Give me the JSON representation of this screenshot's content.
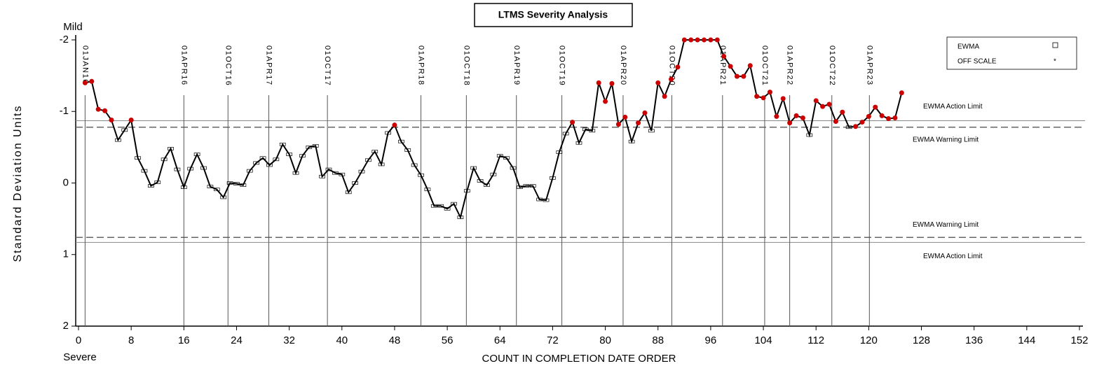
{
  "chart_data": {
    "type": "line",
    "title": "LTMS Severity Analysis",
    "xlabel": "COUNT IN COMPLETION DATE ORDER",
    "ylabel": "Standard Deviation Units",
    "y_top_label": "Mild",
    "y_bottom_label": "Severe",
    "xlim": [
      0,
      152
    ],
    "xticks": [
      0,
      8,
      16,
      24,
      32,
      40,
      48,
      56,
      64,
      72,
      80,
      88,
      96,
      104,
      112,
      120,
      128,
      136,
      144,
      152
    ],
    "ylim": [
      2,
      -2
    ],
    "yticks": [
      -2,
      -1,
      0,
      1,
      2
    ],
    "x": [
      1,
      2,
      3,
      4,
      5,
      6,
      7,
      8,
      9,
      10,
      11,
      12,
      13,
      14,
      15,
      16,
      17,
      18,
      19,
      20,
      21,
      22,
      23,
      24,
      25,
      26,
      27,
      28,
      29,
      30,
      31,
      32,
      33,
      34,
      35,
      36,
      37,
      38,
      39,
      40,
      41,
      42,
      43,
      44,
      45,
      46,
      47,
      48,
      49,
      50,
      51,
      52,
      53,
      54,
      55,
      56,
      57,
      58,
      59,
      60,
      61,
      62,
      63,
      64,
      65,
      66,
      67,
      68,
      69,
      70,
      71,
      72,
      73,
      74,
      75,
      76,
      77,
      78,
      79,
      80,
      81,
      82,
      83,
      84,
      85,
      86,
      87,
      88,
      89,
      90,
      91,
      92,
      93,
      94,
      95,
      96,
      97,
      98,
      99,
      100,
      101,
      102,
      103,
      104,
      105,
      106,
      107,
      108,
      109,
      110,
      111,
      112,
      113,
      114,
      115,
      116,
      117,
      118,
      119,
      120,
      121,
      122,
      123,
      124,
      125
    ],
    "series": [
      {
        "name": "EWMA",
        "color": "#000000",
        "values": [
          -1.4,
          -1.42,
          -1.03,
          -1.01,
          -0.88,
          -0.6,
          -0.74,
          -0.88,
          -0.35,
          -0.17,
          0.04,
          -0.01,
          -0.33,
          -0.48,
          -0.19,
          0.06,
          -0.2,
          -0.4,
          -0.21,
          0.05,
          0.09,
          0.2,
          0.0,
          0.01,
          0.03,
          -0.17,
          -0.28,
          -0.35,
          -0.25,
          -0.33,
          -0.54,
          -0.4,
          -0.14,
          -0.38,
          -0.5,
          -0.52,
          -0.09,
          -0.19,
          -0.14,
          -0.12,
          0.13,
          0.0,
          -0.16,
          -0.32,
          -0.44,
          -0.26,
          -0.7,
          -0.81,
          -0.58,
          -0.46,
          -0.25,
          -0.11,
          0.09,
          0.32,
          0.32,
          0.36,
          0.29,
          0.48,
          0.11,
          -0.21,
          -0.03,
          0.03,
          -0.12,
          -0.38,
          -0.35,
          -0.21,
          0.06,
          0.04,
          0.04,
          0.23,
          0.24,
          -0.07,
          -0.43,
          -0.69,
          -0.85,
          -0.56,
          -0.75,
          -0.73,
          -1.4,
          -1.14,
          -1.39,
          -0.82,
          -0.92,
          -0.58,
          -0.84,
          -0.98,
          -0.73,
          -1.4,
          -1.21,
          -1.45,
          -1.62,
          -2,
          -2,
          -2,
          -2,
          -2,
          -2,
          -1.77,
          -1.63,
          -1.49,
          -1.49,
          -1.64,
          -1.21,
          -1.19,
          -1.27,
          -0.93,
          -1.18,
          -0.84,
          -0.94,
          -0.91,
          -0.67,
          -1.15,
          -1.07,
          -1.1,
          -0.86,
          -0.99,
          -0.78,
          -0.79,
          -0.85,
          -0.93,
          -1.06,
          -0.94,
          -0.9,
          -0.91,
          -1.26
        ]
      }
    ],
    "alarm_color": "#cc0000",
    "off_scale": {
      "label": "OFF SCALE",
      "symbol": "*"
    },
    "limits": [
      {
        "label": "EWMA Action Limit",
        "value": -0.87,
        "style": "solid"
      },
      {
        "label": "EWMA Warning Limit",
        "value": -0.78,
        "style": "dashed"
      },
      {
        "label": "EWMA Warning Limit",
        "value": 0.76,
        "style": "dashed"
      },
      {
        "label": "EWMA Action Limit",
        "value": 0.83,
        "style": "solid"
      }
    ],
    "date_lines": [
      {
        "label": "01JAN16",
        "x": 1
      },
      {
        "label": "01APR16",
        "x": 16
      },
      {
        "label": "01OCT16",
        "x": 22.7
      },
      {
        "label": "01APR17",
        "x": 28.9
      },
      {
        "label": "01OCT17",
        "x": 37.8
      },
      {
        "label": "01APR18",
        "x": 52
      },
      {
        "label": "01OCT18",
        "x": 58.9
      },
      {
        "label": "01APR19",
        "x": 66.5
      },
      {
        "label": "01OCT19",
        "x": 73.4
      },
      {
        "label": "01APR20",
        "x": 82.7
      },
      {
        "label": "01OCT20",
        "x": 90.1
      },
      {
        "label": "01APR21",
        "x": 97.8
      },
      {
        "label": "01OCT21",
        "x": 104.2
      },
      {
        "label": "01APR22",
        "x": 108
      },
      {
        "label": "01OCT22",
        "x": 114.4
      },
      {
        "label": "01APR23",
        "x": 120.1
      }
    ]
  }
}
